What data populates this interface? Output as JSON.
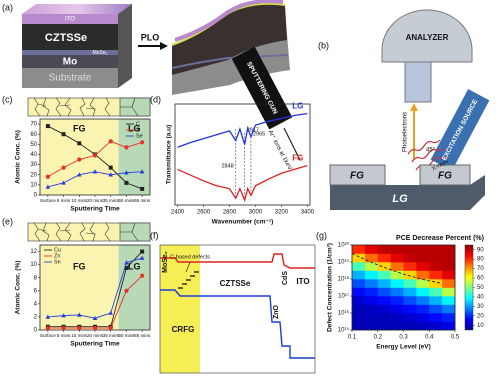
{
  "panel_labels": [
    "(a)",
    "(b)",
    "(c)",
    "(d)",
    "(e)",
    "(f)",
    "(g)"
  ],
  "panel_a": {
    "layers": [
      "ITO",
      "CZTSSe",
      "MoSe₂",
      "Mo",
      "Substrate"
    ],
    "arrow": "PLO"
  },
  "panel_b": {
    "analyzer": "ANALYZER",
    "gun": "SPUTTERING GUN",
    "ions": "Ar⁺ ions at 1keV",
    "photoelectrons": "Photoelectrons",
    "angle": "45°",
    "xrays": "X-rays",
    "source": "EXCITATION SOURCE",
    "fg_left": "FG",
    "fg_right": "FG",
    "lg": "LG"
  },
  "panel_f": {
    "mose2": "MoSe₂",
    "defects": "C-based defects",
    "absorber": "CZTSSe",
    "cds": "CdS",
    "zno": "ZnO",
    "ito": "ITO",
    "crfg": "CRFG"
  },
  "chart_data": [
    {
      "type": "line",
      "xlabel": "Sputtering Time",
      "ylabel": "Atomic Conc. (%)",
      "categories": [
        "Surface",
        "5 mins",
        "10 mins",
        "20 mins",
        "35 mins",
        "50 mins",
        "65 mins"
      ],
      "ylim": [
        0,
        75
      ],
      "yticks": [
        0,
        10,
        20,
        30,
        40,
        50,
        60,
        70
      ],
      "regions": [
        {
          "label": "FG",
          "from": "Surface",
          "to": "35 mins",
          "color": "#fbf4b0"
        },
        {
          "label": "LG",
          "from": "50 mins",
          "to": "65 mins",
          "color": "#b7d9b5"
        }
      ],
      "legend": "upper right",
      "series": [
        {
          "name": "C",
          "color": "#222222",
          "marker": "square",
          "values": [
            68,
            60,
            51,
            40,
            27,
            12,
            6
          ]
        },
        {
          "name": "S",
          "color": "#e8302a",
          "marker": "circle",
          "values": [
            18,
            27,
            35,
            39,
            53,
            47,
            52
          ]
        },
        {
          "name": "Se",
          "color": "#2a3fd8",
          "marker": "triangle",
          "values": [
            8,
            12,
            20,
            23,
            20,
            22,
            23
          ]
        }
      ]
    },
    {
      "type": "line",
      "xlabel": "Wavenumber (cm⁻¹)",
      "ylabel": "Transmittance (a.u)",
      "x": [
        2400,
        2500,
        2600,
        2700,
        2800,
        2848,
        2880,
        2917,
        2940,
        2965,
        3000,
        3100,
        3200,
        3300,
        3400
      ],
      "xlim": [
        2380,
        3420
      ],
      "xticks": [
        2400,
        2600,
        2800,
        3000,
        3200,
        3400
      ],
      "ylim": [
        -0.05,
        1
      ],
      "peaks": [
        2848,
        2917,
        2965
      ],
      "series": [
        {
          "name": "LG",
          "color": "#2233dd",
          "values": [
            0.55,
            0.6,
            0.64,
            0.68,
            0.72,
            0.62,
            0.74,
            0.58,
            0.75,
            0.66,
            0.78,
            0.82,
            0.85,
            0.88,
            0.9
          ]
        },
        {
          "name": "FG",
          "color": "#e02020",
          "values": [
            0.32,
            0.26,
            0.2,
            0.15,
            0.12,
            0.02,
            0.12,
            0.0,
            0.12,
            0.05,
            0.15,
            0.22,
            0.28,
            0.32,
            0.36
          ]
        }
      ]
    },
    {
      "type": "line",
      "xlabel": "Sputtering Time",
      "ylabel": "Atomic Conc. (%)",
      "categories": [
        "Surface",
        "5 mins",
        "10 mins",
        "20 mins",
        "35 mins",
        "50 mins",
        "65 mins"
      ],
      "ylim": [
        0,
        13
      ],
      "yticks": [
        0,
        2,
        4,
        6,
        8,
        10,
        12
      ],
      "regions": [
        {
          "label": "FG",
          "from": "Surface",
          "to": "35 mins",
          "color": "#fbf4b0"
        },
        {
          "label": "LG",
          "from": "50 mins",
          "to": "65 mins",
          "color": "#b7d9b5"
        }
      ],
      "legend": "upper left",
      "series": [
        {
          "name": "Cu",
          "color": "#222222",
          "marker": "square",
          "values": [
            0.5,
            0.5,
            0.5,
            0.5,
            0.5,
            9.5,
            12
          ]
        },
        {
          "name": "Zn",
          "color": "#e8302a",
          "marker": "circle",
          "values": [
            0.3,
            0.3,
            0.3,
            0.3,
            0.3,
            6,
            8.3
          ]
        },
        {
          "name": "Sn",
          "color": "#2a3fd8",
          "marker": "triangle",
          "values": [
            2,
            2.2,
            2.3,
            1.8,
            2.6,
            10.3,
            11
          ]
        }
      ]
    },
    {
      "type": "heatmap",
      "title": "PCE Decrease Percent (%)",
      "xlabel": "Energy Level (eV)",
      "ylabel": "Defect Concentration (1/cm³)",
      "xlim": [
        0.1,
        0.5
      ],
      "xticks": [
        0.1,
        0.2,
        0.3,
        0.4,
        0.5
      ],
      "ylim": [
        1000000000000000.0,
        1e+20
      ],
      "ylog": true,
      "yticks": [
        {
          "value": 1000000000000000.0,
          "label": "10¹⁵"
        },
        {
          "value": 1e+16,
          "label": "10¹⁶"
        },
        {
          "value": 1e+17,
          "label": "10¹⁷"
        },
        {
          "value": 1e+18,
          "label": "10¹⁸"
        },
        {
          "value": 1e+19,
          "label": "10¹⁹"
        },
        {
          "value": 1e+20,
          "label": "10²⁰"
        }
      ],
      "x_edges": [
        0.1,
        0.15,
        0.2,
        0.25,
        0.3,
        0.35,
        0.4,
        0.45,
        0.5
      ],
      "y_edges": [
        1000000000000000.0,
        3162000000000000.0,
        1e+16,
        3.162e+16,
        1e+17,
        3.162e+17,
        1e+18,
        3.162e+18,
        1e+19,
        3.162e+19,
        1e+20
      ],
      "z": [
        [
          10,
          10,
          10,
          10,
          10,
          11,
          12,
          14
        ],
        [
          10,
          10,
          10,
          11,
          12,
          14,
          17,
          19
        ],
        [
          10,
          11,
          12,
          14,
          17,
          19,
          23,
          27
        ],
        [
          12,
          14,
          17,
          19,
          23,
          27,
          32,
          38
        ],
        [
          17,
          19,
          23,
          27,
          32,
          38,
          45,
          55
        ],
        [
          23,
          27,
          32,
          38,
          45,
          55,
          65,
          74
        ],
        [
          32,
          38,
          45,
          55,
          65,
          74,
          80,
          86
        ],
        [
          45,
          55,
          65,
          74,
          80,
          86,
          89,
          90
        ],
        [
          65,
          74,
          80,
          86,
          89,
          90,
          90,
          90
        ],
        [
          80,
          86,
          89,
          90,
          90,
          90,
          90,
          90
        ]
      ],
      "zlim": [
        5,
        95
      ],
      "zticks": [
        10,
        20,
        30,
        40,
        50,
        60,
        70,
        80,
        90
      ],
      "colormap": "jet"
    }
  ]
}
